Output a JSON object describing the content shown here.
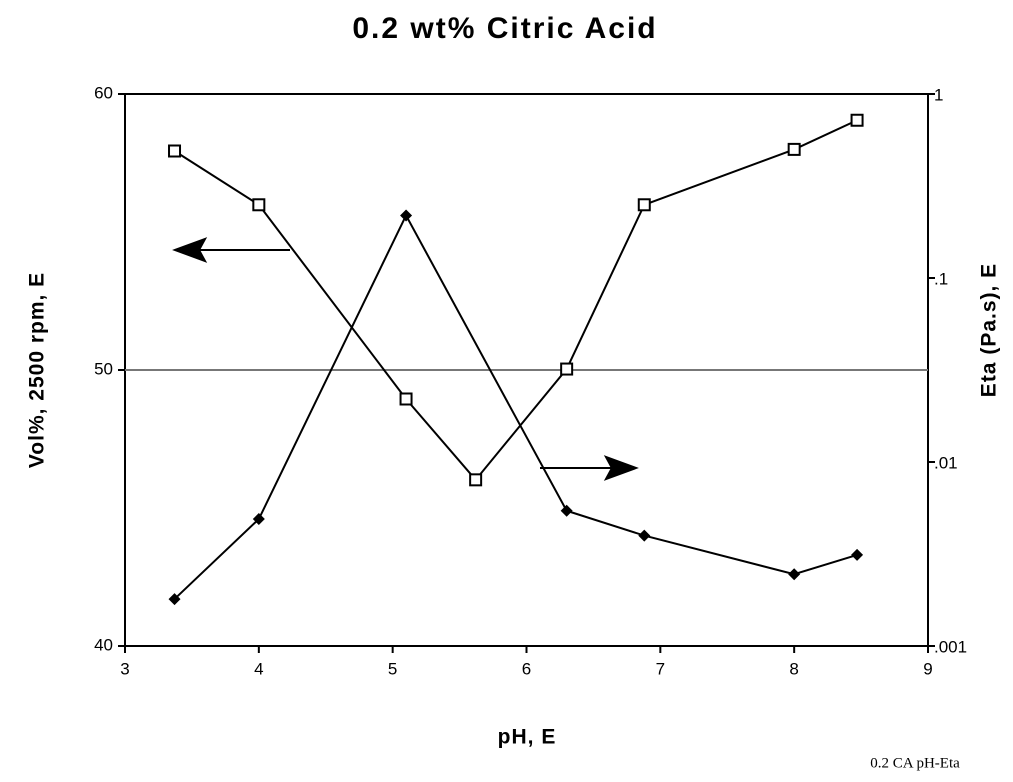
{
  "chart_data": {
    "type": "line",
    "title": "0.2  wt%  Citric  Acid",
    "xlabel": "pH,  E",
    "ylabel": "Vol%,  2500  rpm,  E",
    "y2label": "Eta  (Pa.s),  E",
    "footnote": "0.2 CA pH-Eta",
    "xlim": [
      3,
      9
    ],
    "xticks": [
      3,
      4,
      5,
      6,
      7,
      8,
      9
    ],
    "ylim": [
      40,
      60
    ],
    "yticks": [
      40,
      50,
      60
    ],
    "y2lim": [
      0.001,
      1
    ],
    "y2ticks": [
      {
        "value": 0.001,
        "label": ".001"
      },
      {
        "value": 0.01,
        "label": ".01"
      },
      {
        "value": 0.1,
        "label": ".1"
      },
      1
    ],
    "y2scale": "log",
    "grid": true,
    "series": [
      {
        "color": "#000000",
        "marker": "diamond",
        "x": [
          3.37,
          4.0,
          5.1,
          6.3,
          6.88,
          8.0,
          8.47
        ],
        "values": [
          41.7,
          44.6,
          55.6,
          44.9,
          44.0,
          42.6,
          43.3
        ]
      },
      {
        "color": "#000000",
        "marker": "square",
        "axis": "y2",
        "x": [
          3.37,
          4.0,
          5.1,
          5.62,
          6.3,
          6.88,
          8.0,
          8.47
        ],
        "values": [
          0.49,
          0.25,
          0.022,
          0.008,
          0.032,
          0.25,
          0.5,
          0.72
        ]
      }
    ]
  }
}
